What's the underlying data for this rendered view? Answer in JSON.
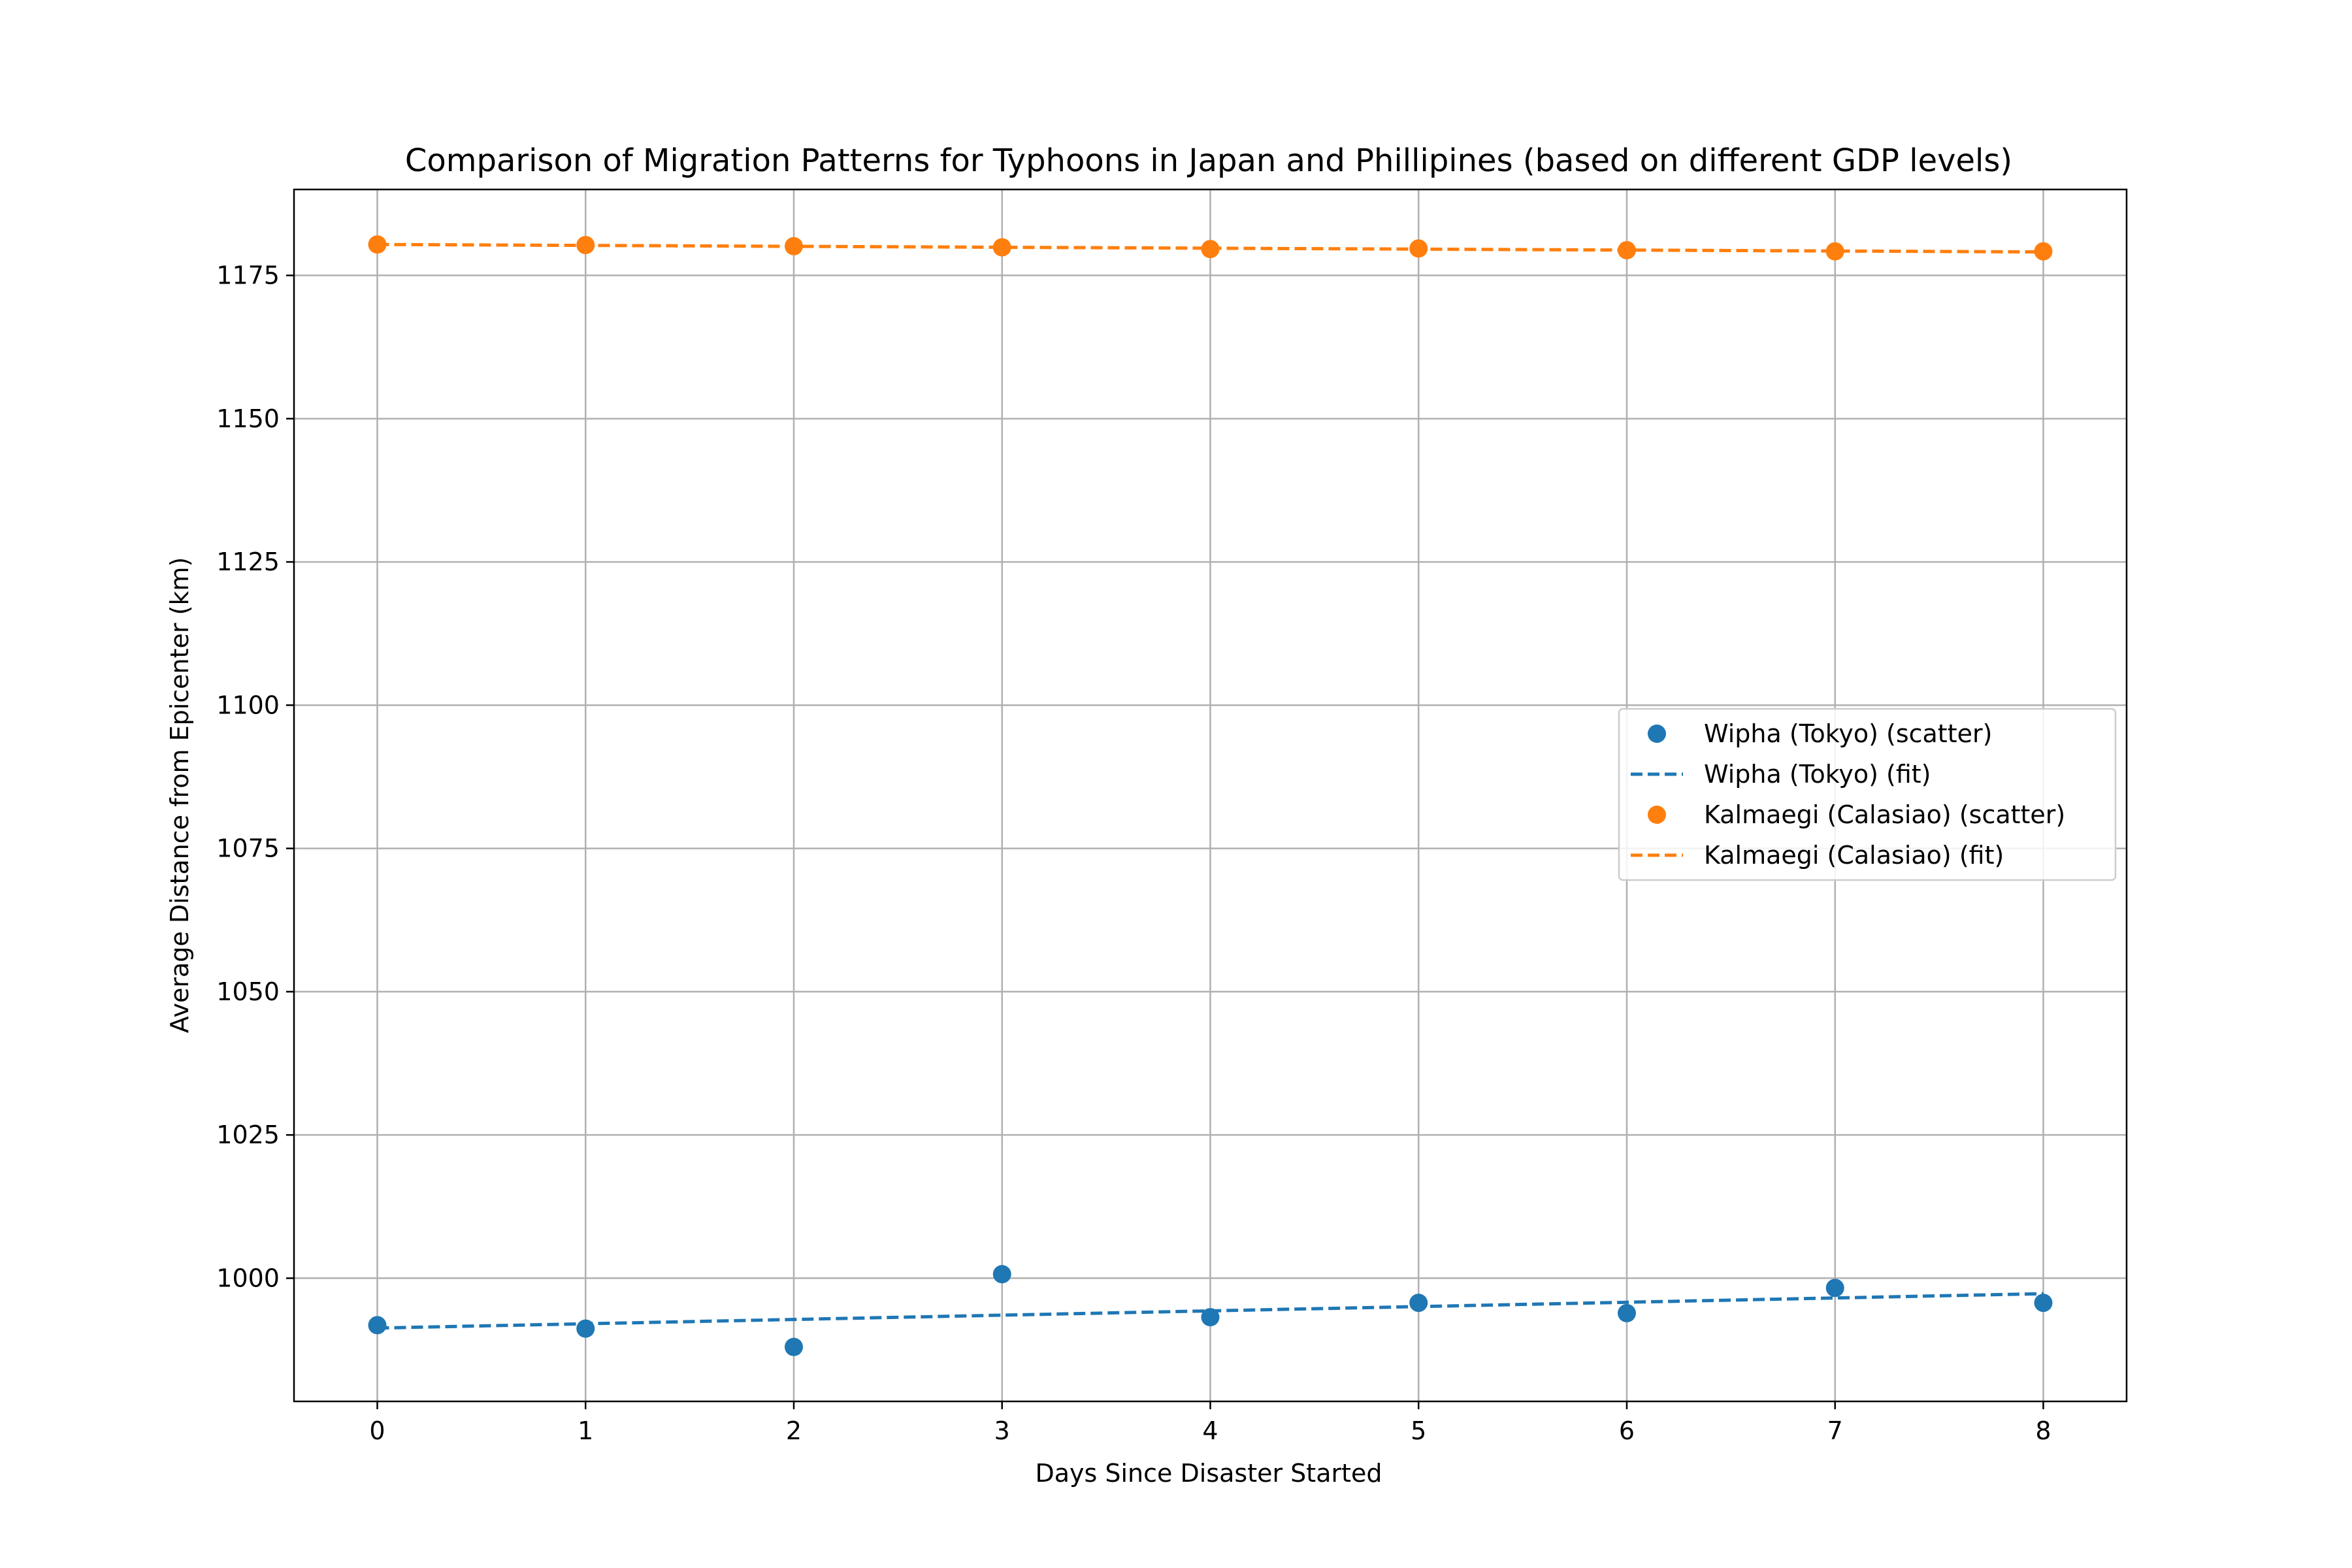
{
  "chart_data": {
    "type": "scatter",
    "title": "Comparison of Migration Patterns for Typhoons in Japan and Phillipines (based on different GDP levels)",
    "xlabel": "Days Since Disaster Started",
    "ylabel": "Average Distance from Epicenter (km)",
    "xlim": [
      -0.4,
      8.4
    ],
    "ylim": [
      978.5,
      1190
    ],
    "xticks": [
      0,
      1,
      2,
      3,
      4,
      5,
      6,
      7,
      8
    ],
    "yticks": [
      1000,
      1025,
      1050,
      1075,
      1100,
      1125,
      1150,
      1175
    ],
    "grid": true,
    "legend_position": "center-right",
    "series": [
      {
        "name": "Wipha (Tokyo)",
        "color": "#1f77b4",
        "x": [
          0,
          1,
          2,
          3,
          4,
          5,
          6,
          7,
          8
        ],
        "y": [
          991.8,
          991.2,
          988.0,
          1000.7,
          993.2,
          995.7,
          993.9,
          998.3,
          995.7
        ],
        "fit": {
          "start": 991.3,
          "end": 997.3
        },
        "legend_scatter": "Wipha (Tokyo) (scatter)",
        "legend_fit": "Wipha (Tokyo) (fit)"
      },
      {
        "name": "Kalmaegi (Calasiao)",
        "color": "#ff7f0e",
        "x": [
          0,
          1,
          2,
          3,
          4,
          5,
          6,
          7,
          8
        ],
        "y": [
          1180.4,
          1180.3,
          1180.1,
          1179.9,
          1179.6,
          1179.7,
          1179.4,
          1179.2,
          1179.2
        ],
        "fit": {
          "start": 1180.4,
          "end": 1179.1
        },
        "legend_scatter": "Kalmaegi (Calasiao) (scatter)",
        "legend_fit": "Kalmaegi (Calasiao) (fit)"
      }
    ]
  }
}
